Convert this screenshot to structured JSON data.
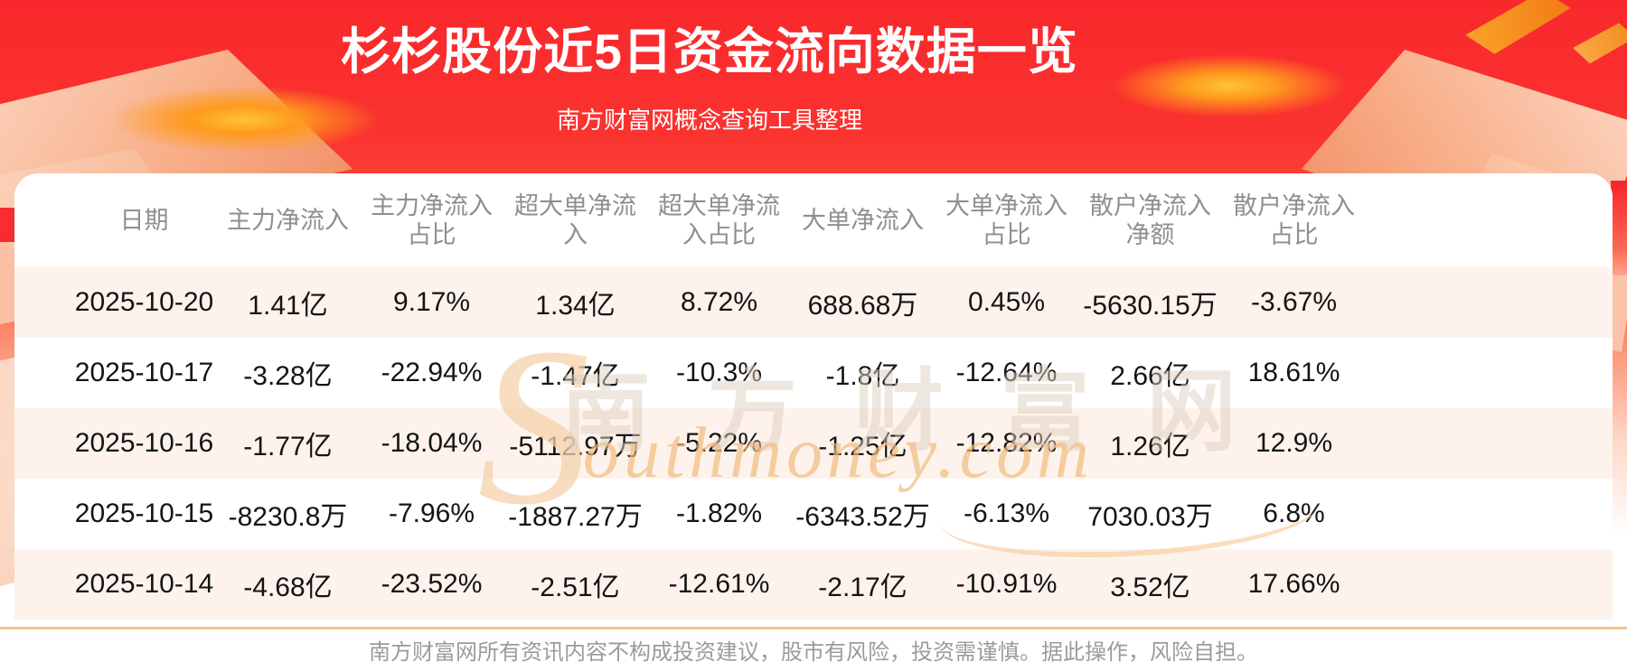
{
  "banner": {
    "title": "杉杉股份近5日资金流向数据一览",
    "subtitle": "南方财富网概念查询工具整理"
  },
  "chart_data": {
    "type": "table",
    "title": "杉杉股份近5日资金流向数据一览",
    "columns": [
      "日期",
      "主力净流入",
      "主力净流入占比",
      "超大单净流入",
      "超大单净流入占比",
      "大单净流入",
      "大单净流入占比",
      "散户净流入净额",
      "散户净流入占比"
    ],
    "rows": [
      [
        "2025-10-20",
        "1.41亿",
        "9.17%",
        "1.34亿",
        "8.72%",
        "688.68万",
        "0.45%",
        "-5630.15万",
        "-3.67%"
      ],
      [
        "2025-10-17",
        "-3.28亿",
        "-22.94%",
        "-1.47亿",
        "-10.3%",
        "-1.8亿",
        "-12.64%",
        "2.66亿",
        "18.61%"
      ],
      [
        "2025-10-16",
        "-1.77亿",
        "-18.04%",
        "-5112.97万",
        "-5.22%",
        "-1.25亿",
        "-12.82%",
        "1.26亿",
        "12.9%"
      ],
      [
        "2025-10-15",
        "-8230.8万",
        "-7.96%",
        "-1887.27万",
        "-1.82%",
        "-6343.52万",
        "-6.13%",
        "7030.03万",
        "6.8%"
      ],
      [
        "2025-10-14",
        "-4.68亿",
        "-23.52%",
        "-2.51亿",
        "-12.61%",
        "-2.17亿",
        "-10.91%",
        "3.52亿",
        "17.66%"
      ]
    ]
  },
  "watermark": {
    "swash": "S",
    "cn": "南方财富网",
    "en": "outhmoney.com"
  },
  "footer": {
    "disclaimer": "南方财富网所有资讯内容不构成投资建议，股市有风险，投资需谨慎。据此操作，风险自担。"
  },
  "colors": {
    "banner_red": "#f9282c",
    "row_stripe": "#fdf3ec",
    "divider_orange": "#f2c28b",
    "column_header_text": "#8f8f8f",
    "cell_text": "#141414",
    "footer_text": "#9b9b9b",
    "gold_glow": "#ff9a1d"
  }
}
